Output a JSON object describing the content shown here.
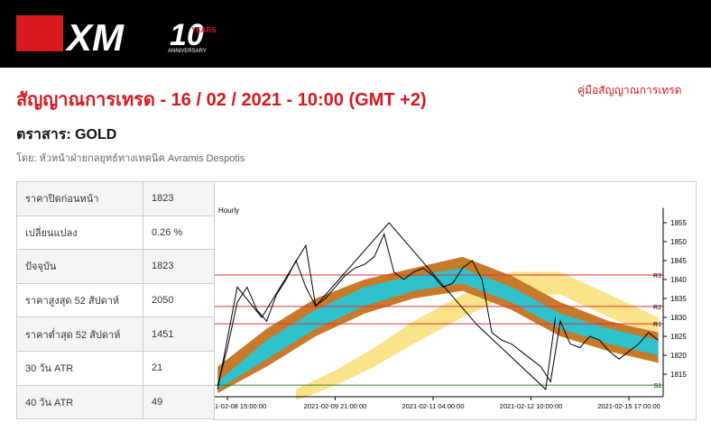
{
  "header": {
    "logo": "XM",
    "badge": "10",
    "badge_top": "YEARS",
    "badge_bottom": "ANNIVERSARY"
  },
  "title": "สัญญาณการเทรด - 16 / 02 / 2021 - 10:00 (GMT +2)",
  "guide_link": "คู่มือสัญญาณการเทรด",
  "instrument": "ตราสาร: GOLD",
  "author": "โดย: หัวหน้าฝ่ายกลยุทธ์ทางเทคนิค Avramis Despotis",
  "table": {
    "rows": [
      [
        "ราคาปิดก่อนหน้า",
        "1823"
      ],
      [
        "เปลี่ยนแปลง",
        "0.26 %"
      ],
      [
        "ปัจจุบัน",
        "1823"
      ],
      [
        "ราคาสูงสุด 52 สัปดาห์",
        "2050"
      ],
      [
        "ราคาต่ำสุด 52 สัปดาห์",
        "1451"
      ],
      [
        "30 วัน ATR",
        "21"
      ],
      [
        "40 วัน ATR",
        "49"
      ]
    ]
  },
  "chart_data": {
    "type": "line",
    "title": "Hourly",
    "xlim": [
      -0.3,
      45.5
    ],
    "xticks": [
      {
        "value": 1,
        "label": "1-02-08 15:00:00"
      },
      {
        "value": 12,
        "label": "2021-02-09 21:00:00"
      },
      {
        "value": 22,
        "label": "2021-02-11 04:00:00"
      },
      {
        "value": 32,
        "label": "2021-02-12 10:00:00"
      },
      {
        "value": 42,
        "label": "2021-02-15 17:00:00"
      }
    ],
    "ylim": [
      1810,
      1857
    ],
    "yticks": [
      1815,
      1820,
      1825,
      1830,
      1835,
      1840,
      1845,
      1850,
      1855
    ],
    "series": [
      {
        "name": "close",
        "color": "#000000",
        "values": [
          1812,
          1822,
          1834,
          1838,
          1832,
          1829,
          1836,
          1840,
          1845,
          1838,
          1833,
          1835,
          1838,
          1841,
          1843,
          1844,
          1846,
          1852,
          1842,
          1840,
          1842,
          1843,
          1841,
          1838,
          1839,
          1843,
          1845,
          1840,
          1826,
          1824,
          1823,
          1821,
          1819,
          1817,
          1813,
          1829,
          1823,
          1822,
          1825,
          1824,
          1821,
          1819,
          1821,
          1823,
          1826,
          1824
        ]
      }
    ],
    "bands": [
      {
        "color": "#fbe38a",
        "x": [
          8,
          12,
          16,
          20,
          25,
          30,
          35,
          40,
          45
        ],
        "upper": [
          1811,
          1816,
          1822,
          1829,
          1836,
          1842,
          1842,
          1836,
          1830
        ],
        "lower": [
          1808,
          1812,
          1817,
          1823,
          1830,
          1836,
          1836,
          1830,
          1825
        ]
      },
      {
        "color": "#c77a2c",
        "x": [
          0,
          5,
          10,
          15,
          20,
          25,
          30,
          35,
          40,
          45
        ],
        "upper": [
          1817,
          1827,
          1835,
          1840,
          1843,
          1846,
          1841,
          1834,
          1829,
          1826
        ],
        "lower": [
          1810,
          1817,
          1825,
          1831,
          1835,
          1837,
          1832,
          1825,
          1821,
          1818
        ]
      },
      {
        "color": "#2fc1cc",
        "x": [
          0,
          5,
          10,
          15,
          20,
          25,
          30,
          35,
          40,
          45
        ],
        "upper": [
          1813,
          1824,
          1832,
          1838,
          1841,
          1843,
          1838,
          1831,
          1827,
          1824
        ],
        "lower": [
          1811,
          1819,
          1827,
          1833,
          1837,
          1839,
          1834,
          1827,
          1823,
          1820
        ]
      }
    ],
    "zigzag": {
      "color": "#000000",
      "x": [
        0,
        2,
        4.5,
        9,
        10,
        17.5,
        26.5,
        33.5,
        34.5
      ],
      "values": [
        1811,
        1838,
        1830,
        1849,
        1833,
        1855,
        1828,
        1811,
        1830
      ]
    },
    "levels": [
      {
        "name": "R3",
        "value": 1841.2,
        "color": "#e03030"
      },
      {
        "name": "R2",
        "value": 1832.9,
        "color": "#e03030"
      },
      {
        "name": "R1",
        "value": 1828.3,
        "color": "#e03030"
      },
      {
        "name": "S1",
        "value": 1812.1,
        "color": "#2e8b2e"
      }
    ]
  }
}
